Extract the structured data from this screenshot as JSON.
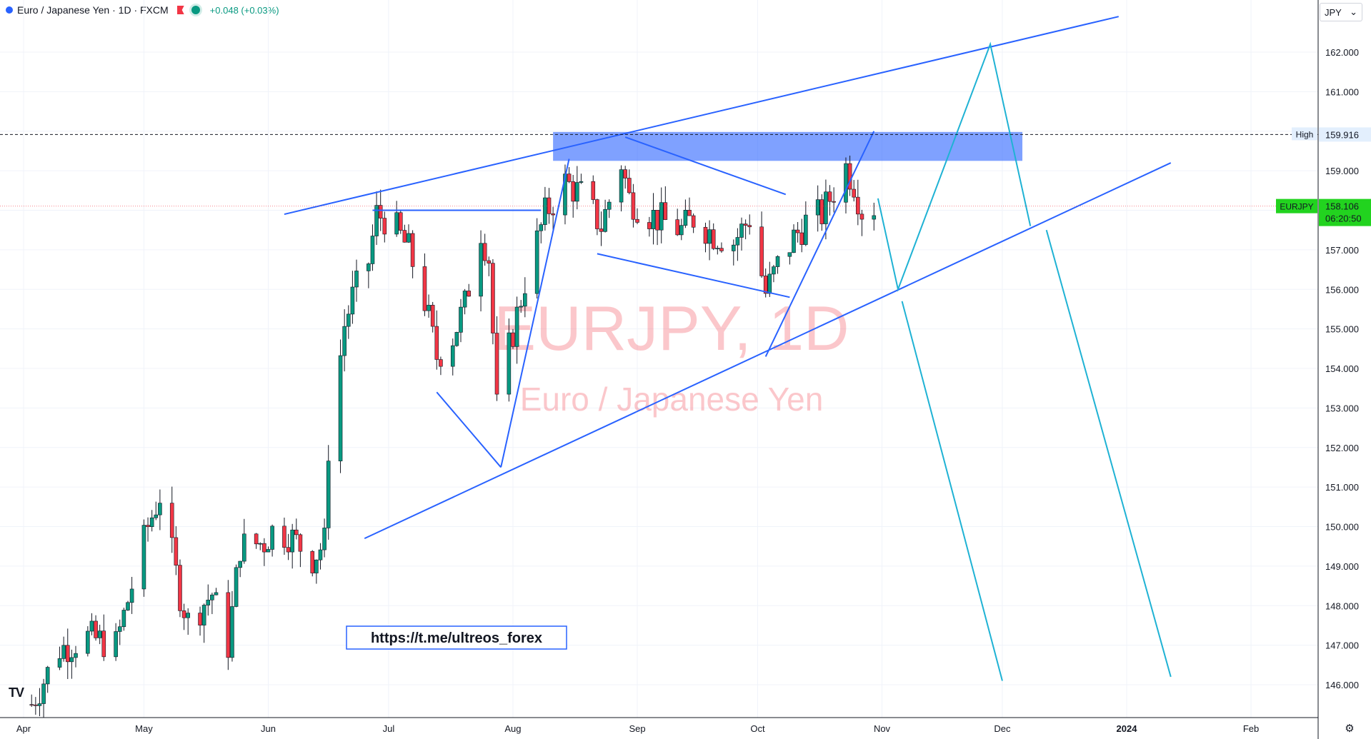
{
  "header": {
    "title": "Euro / Japanese Yen · 1D · FXCM",
    "change": "+0.048 (+0.03%)"
  },
  "currency_selector": {
    "value": "JPY"
  },
  "logo_text": "TV",
  "chart_data": {
    "type": "candlestick",
    "symbol": "EURJPY",
    "watermark": [
      "EURJPY, 1D",
      "Euro / Japanese Yen"
    ],
    "y_range": [
      145.6,
      163.0
    ],
    "y_ticks": [
      146,
      147,
      148,
      149,
      150,
      151,
      152,
      153,
      154,
      155,
      156,
      157,
      158,
      159,
      160,
      161,
      162
    ],
    "y_tick_labels": [
      "146.000",
      "147.000",
      "148.000",
      "149.000",
      "150.000",
      "151.000",
      "152.000",
      "153.000",
      "154.000",
      "155.000",
      "156.000",
      "157.000",
      "158.000",
      "159.000",
      "160.000",
      "161.000",
      "162.000"
    ],
    "x_range": [
      "2023-03-31",
      "2024-02-16"
    ],
    "x_ticks": [
      {
        "date": "2023-04-01",
        "label": "Apr"
      },
      {
        "date": "2023-05-01",
        "label": "May"
      },
      {
        "date": "2023-06-01",
        "label": "Jun"
      },
      {
        "date": "2023-07-01",
        "label": "Jul"
      },
      {
        "date": "2023-08-01",
        "label": "Aug"
      },
      {
        "date": "2023-09-01",
        "label": "Sep"
      },
      {
        "date": "2023-10-01",
        "label": "Oct"
      },
      {
        "date": "2023-11-01",
        "label": "Nov"
      },
      {
        "date": "2023-12-01",
        "label": "Dec"
      },
      {
        "date": "2024-01-01",
        "label": "2024"
      },
      {
        "date": "2024-02-01",
        "label": "Feb"
      }
    ],
    "high_line": {
      "label": "High",
      "value": 159.916,
      "value_label": "159.916"
    },
    "last_price": {
      "symbol": "EURJPY",
      "value": 158.106,
      "value_label": "158.106",
      "countdown": "06:20:50"
    },
    "up_color": "#089981",
    "down_color": "#f23645",
    "candles_keypoints": [
      [
        "2023-04-03",
        145.5
      ],
      [
        "2023-04-10",
        146.9
      ],
      [
        "2023-04-17",
        147.2
      ],
      [
        "2023-04-24",
        147.0
      ],
      [
        "2023-05-02",
        150.0
      ],
      [
        "2023-05-05",
        150.8
      ],
      [
        "2023-05-10",
        148.3
      ],
      [
        "2023-05-12",
        147.6
      ],
      [
        "2023-05-18",
        148.3
      ],
      [
        "2023-05-22",
        147.0
      ],
      [
        "2023-05-25",
        149.5
      ],
      [
        "2023-05-31",
        149.6
      ],
      [
        "2023-06-02",
        149.9
      ],
      [
        "2023-06-06",
        149.8
      ],
      [
        "2023-06-12",
        149.2
      ],
      [
        "2023-06-15",
        149.6
      ],
      [
        "2023-06-16",
        152.0
      ],
      [
        "2023-06-20",
        155.1
      ],
      [
        "2023-06-22",
        155.8
      ],
      [
        "2023-06-26",
        156.7
      ],
      [
        "2023-06-28",
        157.9
      ],
      [
        "2023-06-30",
        157.8
      ],
      [
        "2023-07-03",
        157.5
      ],
      [
        "2023-07-06",
        157.0
      ],
      [
        "2023-07-10",
        155.7
      ],
      [
        "2023-07-13",
        154.3
      ],
      [
        "2023-07-17",
        154.8
      ],
      [
        "2023-07-20",
        155.6
      ],
      [
        "2023-07-24",
        157.5
      ],
      [
        "2023-07-26",
        156.8
      ],
      [
        "2023-07-28",
        153.0
      ],
      [
        "2023-07-31",
        154.5
      ],
      [
        "2023-08-04",
        156.2
      ],
      [
        "2023-08-09",
        157.9
      ],
      [
        "2023-08-14",
        158.7
      ],
      [
        "2023-08-18",
        158.4
      ],
      [
        "2023-08-23",
        157.6
      ],
      [
        "2023-08-28",
        159.2
      ],
      [
        "2023-08-30",
        158.3
      ],
      [
        "2023-09-04",
        157.9
      ],
      [
        "2023-09-08",
        157.7
      ],
      [
        "2023-09-12",
        157.5
      ],
      [
        "2023-09-15",
        157.8
      ],
      [
        "2023-09-20",
        157.4
      ],
      [
        "2023-09-25",
        157.2
      ],
      [
        "2023-09-29",
        157.8
      ],
      [
        "2023-10-03",
        155.9
      ],
      [
        "2023-10-06",
        156.6
      ],
      [
        "2023-10-10",
        157.3
      ],
      [
        "2023-10-13",
        157.7
      ],
      [
        "2023-10-17",
        157.9
      ],
      [
        "2023-10-20",
        158.5
      ],
      [
        "2023-10-23",
        159.1
      ],
      [
        "2023-10-25",
        158.7
      ],
      [
        "2023-10-27",
        158.0
      ],
      [
        "2023-10-30",
        158.1
      ]
    ],
    "annotations": {
      "link_label": "https://t.me/ultreos_forex",
      "resistance_zone": [
        159.25,
        159.98
      ]
    }
  }
}
